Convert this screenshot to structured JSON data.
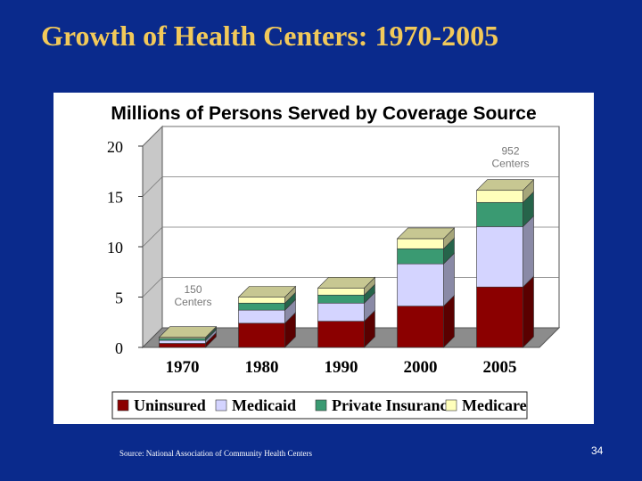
{
  "slide": {
    "title": "Growth of Health Centers: 1970-2005",
    "source": "Source: National Association of Community Health Centers",
    "page_number": "34",
    "background_color": "#0a2a8c",
    "title_color": "#f2c95a"
  },
  "chart_data": {
    "type": "bar",
    "stacked": true,
    "style": "3d",
    "title": "Millions of Persons Served by Coverage Source",
    "categories": [
      "1970",
      "1980",
      "1990",
      "2000",
      "2005"
    ],
    "ylim": [
      0,
      20
    ],
    "yticks": [
      "0",
      "5",
      "10",
      "15",
      "20"
    ],
    "series": [
      {
        "name": "Uninsured",
        "color": "#8b0000",
        "values": [
          0.4,
          2.4,
          2.6,
          4.1,
          6.0
        ]
      },
      {
        "name": "Medicaid",
        "color": "#d4d4ff",
        "values": [
          0.3,
          1.3,
          1.8,
          4.2,
          6.0
        ]
      },
      {
        "name": "Private Insurance",
        "color": "#3a9a72",
        "values": [
          0.2,
          0.7,
          0.8,
          1.5,
          2.4
        ]
      },
      {
        "name": "Medicare",
        "color": "#ffffbb",
        "values": [
          0.1,
          0.6,
          0.7,
          1.0,
          1.2
        ]
      }
    ],
    "annotations": [
      {
        "category": "1970",
        "lines": [
          "150",
          "Centers"
        ]
      },
      {
        "category": "2005",
        "lines": [
          "952",
          "Centers"
        ]
      }
    ],
    "legend": {
      "position": "bottom"
    }
  }
}
